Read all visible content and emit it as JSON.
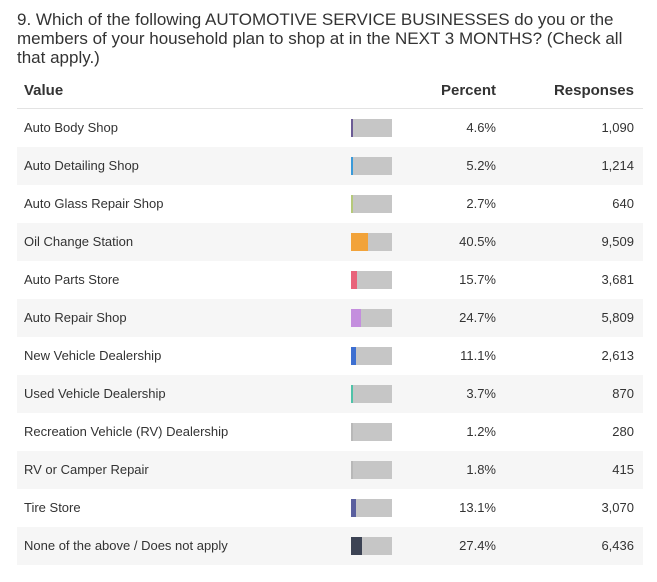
{
  "question": "9. Which of the following AUTOMOTIVE SERVICE BUSINESSES do you or the members of your household plan to shop at in the NEXT 3 MONTHS? (Check all that apply.)",
  "columns": {
    "value": "Value",
    "percent": "Percent",
    "responses": "Responses"
  },
  "chart_data": {
    "type": "bar",
    "title": "9. Which of the following AUTOMOTIVE SERVICE BUSINESSES do you or the members of your household plan to shop at in the NEXT 3 MONTHS? (Check all that apply.)",
    "categories": [
      "Auto Body Shop",
      "Auto Detailing Shop",
      "Auto Glass Repair Shop",
      "Oil Change Station",
      "Auto Parts Store",
      "Auto Repair Shop",
      "New Vehicle Dealership",
      "Used Vehicle Dealership",
      "Recreation Vehicle (RV) Dealership",
      "RV or Camper Repair",
      "Tire Store",
      "None of the above / Does not apply"
    ],
    "values": [
      4.6,
      5.2,
      2.7,
      40.5,
      15.7,
      24.7,
      11.1,
      3.7,
      1.2,
      1.8,
      13.1,
      27.4
    ],
    "ylim": [
      0,
      100
    ],
    "rows": [
      {
        "label": "Auto Body Shop",
        "percent": 4.6,
        "percent_text": "4.6%",
        "responses": "1,090",
        "color": "#6b5b95"
      },
      {
        "label": "Auto Detailing Shop",
        "percent": 5.2,
        "percent_text": "5.2%",
        "responses": "1,214",
        "color": "#3a9ad9"
      },
      {
        "label": "Auto Glass Repair Shop",
        "percent": 2.7,
        "percent_text": "2.7%",
        "responses": "640",
        "color": "#b5c97a"
      },
      {
        "label": "Oil Change Station",
        "percent": 40.5,
        "percent_text": "40.5%",
        "responses": "9,509",
        "color": "#f2a33a"
      },
      {
        "label": "Auto Parts Store",
        "percent": 15.7,
        "percent_text": "15.7%",
        "responses": "3,681",
        "color": "#e8637a"
      },
      {
        "label": "Auto Repair Shop",
        "percent": 24.7,
        "percent_text": "24.7%",
        "responses": "5,809",
        "color": "#c48ede"
      },
      {
        "label": "New Vehicle Dealership",
        "percent": 11.1,
        "percent_text": "11.1%",
        "responses": "2,613",
        "color": "#3d6fd1"
      },
      {
        "label": "Used Vehicle Dealership",
        "percent": 3.7,
        "percent_text": "3.7%",
        "responses": "870",
        "color": "#4fc2a8"
      },
      {
        "label": "Recreation Vehicle (RV) Dealership",
        "percent": 1.2,
        "percent_text": "1.2%",
        "responses": "280",
        "color": "#b8b8b8"
      },
      {
        "label": "RV or Camper Repair",
        "percent": 1.8,
        "percent_text": "1.8%",
        "responses": "415",
        "color": "#b8b8b8"
      },
      {
        "label": "Tire Store",
        "percent": 13.1,
        "percent_text": "13.1%",
        "responses": "3,070",
        "color": "#5a5f9e"
      },
      {
        "label": "None of the above / Does not apply",
        "percent": 27.4,
        "percent_text": "27.4%",
        "responses": "6,436",
        "color": "#3c4354"
      }
    ]
  }
}
